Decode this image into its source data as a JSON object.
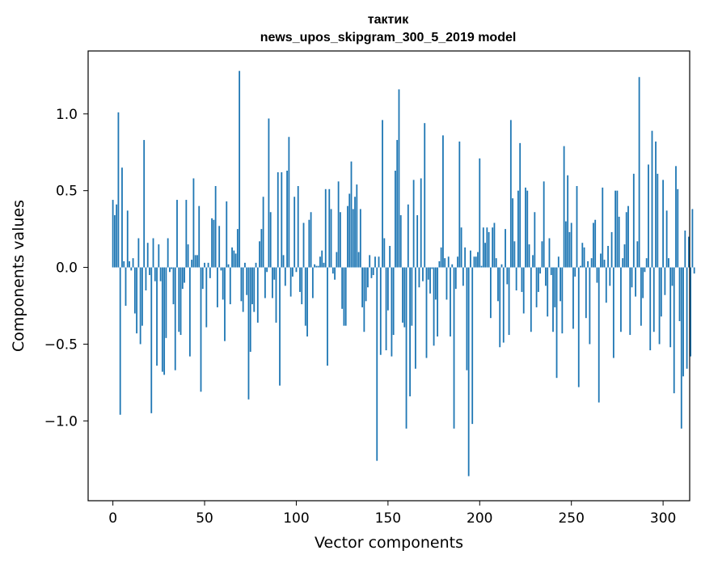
{
  "chart_data": {
    "type": "bar",
    "title": "тактик",
    "subtitle": "news_upos_skipgram_300_5_2019 model",
    "xlabel": "Vector components",
    "ylabel": "Components values",
    "xlim": [
      -13.5,
      314.5
    ],
    "ylim": [
      -1.52,
      1.41
    ],
    "x_ticks": [
      0,
      50,
      100,
      150,
      200,
      250,
      300
    ],
    "y_ticks": [
      -1.0,
      -0.5,
      0.0,
      0.5,
      1.0
    ],
    "x_tick_labels": [
      "0",
      "50",
      "100",
      "150",
      "200",
      "250",
      "300"
    ],
    "y_tick_labels": [
      "−1.0",
      "−0.5",
      "0.0",
      "0.5",
      "1.0"
    ],
    "bar_color": "#1f77b4",
    "bar_width": 0.8,
    "grid": false,
    "values": [
      0.44,
      0.34,
      0.41,
      1.01,
      -0.96,
      0.65,
      0.04,
      -0.25,
      0.37,
      0.04,
      -0.02,
      0.06,
      -0.3,
      -0.43,
      0.19,
      -0.5,
      -0.38,
      0.83,
      -0.15,
      0.16,
      -0.05,
      -0.95,
      0.19,
      -0.09,
      -0.64,
      0.15,
      -0.09,
      -0.68,
      -0.7,
      -0.46,
      0.19,
      -0.03,
      -0.01,
      -0.24,
      -0.67,
      0.44,
      -0.42,
      -0.44,
      -0.14,
      -0.1,
      0.44,
      0.15,
      -0.58,
      0.05,
      0.58,
      0.08,
      0.08,
      0.4,
      -0.81,
      -0.14,
      0.03,
      -0.39,
      0.03,
      -0.07,
      0.32,
      0.31,
      0.53,
      -0.26,
      0.27,
      -0.02,
      -0.21,
      -0.48,
      0.43,
      0.02,
      -0.24,
      0.13,
      0.11,
      0.09,
      0.25,
      1.28,
      -0.22,
      -0.29,
      0.03,
      -0.18,
      -0.86,
      -0.55,
      -0.24,
      -0.29,
      0.03,
      -0.36,
      0.17,
      0.25,
      0.46,
      -0.2,
      -0.03,
      0.97,
      0.36,
      -0.2,
      -0.08,
      -0.36,
      0.62,
      -0.77,
      0.62,
      0.08,
      -0.12,
      0.63,
      0.85,
      -0.19,
      -0.06,
      0.46,
      -0.03,
      0.53,
      -0.16,
      -0.24,
      0.29,
      -0.38,
      -0.45,
      0.31,
      0.36,
      -0.2,
      0.02,
      0.01,
      0.01,
      0.07,
      0.11,
      0.03,
      0.51,
      -0.64,
      0.51,
      0.38,
      -0.04,
      -0.08,
      0.1,
      0.56,
      0.36,
      -0.27,
      -0.38,
      -0.38,
      0.4,
      0.48,
      0.69,
      0.38,
      0.46,
      0.54,
      0.1,
      0.38,
      -0.26,
      -0.42,
      -0.22,
      -0.13,
      0.08,
      -0.07,
      -0.05,
      0.07,
      -1.26,
      0.07,
      -0.57,
      0.96,
      0.19,
      -0.54,
      -0.28,
      0.14,
      -0.58,
      -0.44,
      0.63,
      0.83,
      1.16,
      0.34,
      -0.36,
      -0.39,
      -1.05,
      0.41,
      -0.84,
      -0.38,
      0.57,
      -0.66,
      0.34,
      -0.13,
      0.58,
      -0.09,
      0.94,
      -0.59,
      -0.08,
      -0.17,
      -0.01,
      -0.51,
      -0.21,
      -0.45,
      0.04,
      0.13,
      0.86,
      0.06,
      -0.21,
      0.07,
      -0.45,
      0.02,
      -1.05,
      -0.14,
      0.07,
      0.82,
      0.26,
      -0.12,
      0.13,
      -0.67,
      -1.36,
      0.11,
      -1.02,
      0.07,
      0.07,
      0.1,
      0.71,
      0.01,
      0.26,
      0.16,
      0.26,
      0.23,
      -0.33,
      0.26,
      0.29,
      0.06,
      -0.22,
      -0.52,
      0.02,
      -0.49,
      0.25,
      -0.11,
      -0.44,
      0.96,
      0.45,
      0.17,
      -0.15,
      0.5,
      0.81,
      -0.16,
      -0.3,
      0.52,
      0.5,
      0.15,
      -0.42,
      0.08,
      0.36,
      -0.26,
      -0.16,
      -0.04,
      0.17,
      0.56,
      -0.12,
      -0.32,
      0.19,
      -0.05,
      -0.42,
      -0.26,
      -0.72,
      0.07,
      -0.22,
      -0.43,
      0.79,
      0.3,
      0.6,
      0.23,
      0.29,
      -0.4,
      -0.06,
      0.53,
      -0.78,
      0.01,
      0.16,
      0.13,
      -0.33,
      0.04,
      -0.5,
      0.06,
      0.29,
      0.31,
      -0.1,
      -0.88,
      0.09,
      0.52,
      0.05,
      -0.23,
      0.14,
      -0.12,
      0.23,
      -0.59,
      0.5,
      0.5,
      0.33,
      -0.42,
      0.06,
      0.15,
      0.36,
      0.4,
      -0.44,
      -0.13,
      0.61,
      -0.19,
      0.17,
      1.24,
      -0.38,
      -0.2,
      -0.03,
      0.06,
      0.67,
      -0.54,
      0.89,
      -0.42,
      0.82,
      0.61,
      -0.5,
      -0.32,
      0.57,
      -0.18,
      0.37,
      0.06,
      -0.52,
      -0.12,
      -0.82,
      0.66,
      0.51,
      -0.35,
      -1.05,
      -0.71,
      0.24,
      -0.66,
      0.2,
      -0.58,
      0.38,
      -0.04
    ]
  }
}
